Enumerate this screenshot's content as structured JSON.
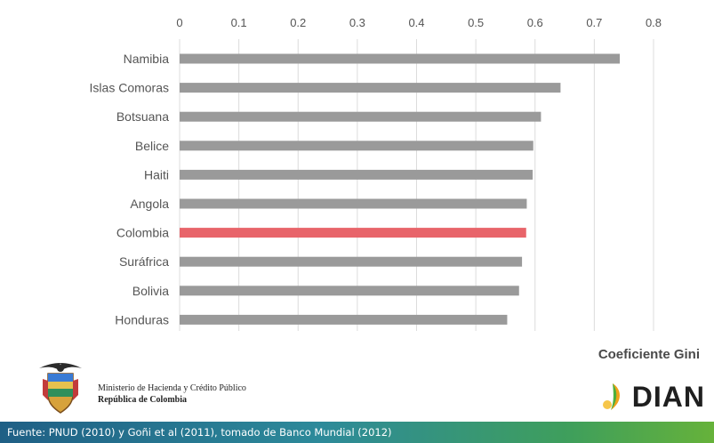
{
  "chart_data": {
    "type": "bar",
    "orientation": "horizontal",
    "categories": [
      "Namibia",
      "Islas Comoras",
      "Botsuana",
      "Belice",
      "Haiti",
      "Angola",
      "Colombia",
      "Surafrica",
      "Bolivia",
      "Honduras"
    ],
    "category_labels": [
      "Namibia",
      "Islas Comoras",
      "Botsuana",
      "Belice",
      "Haiti",
      "Angola",
      "Colombia",
      "Suráfrica",
      "Bolivia",
      "Honduras"
    ],
    "values": [
      0.743,
      0.643,
      0.61,
      0.597,
      0.596,
      0.586,
      0.585,
      0.578,
      0.573,
      0.553
    ],
    "highlight": "Colombia",
    "xlim": [
      0,
      0.8
    ],
    "x_ticks": [
      "0",
      "0.1",
      "0.2",
      "0.3",
      "0.4",
      "0.5",
      "0.6",
      "0.7",
      "0.8"
    ],
    "x_axis_position": "top",
    "grid": true,
    "colors": {
      "bar": "#9a9a9a",
      "highlight": "#e8646a",
      "grid": "#dcdcdc",
      "label": "#555555"
    }
  },
  "chart_title": "Coeficiente Gini",
  "logos": {
    "dian": "DIAN",
    "seal_icon": "colombia-coat-of-arms-icon"
  },
  "ministry": {
    "line1": "Ministerio de Hacienda y Crédito Público",
    "line2": "República de Colombia"
  },
  "footer": {
    "source": "Fuente: PNUD (2010) y Goñi et al (2011), tomado de Banco Mundial (2012)"
  }
}
